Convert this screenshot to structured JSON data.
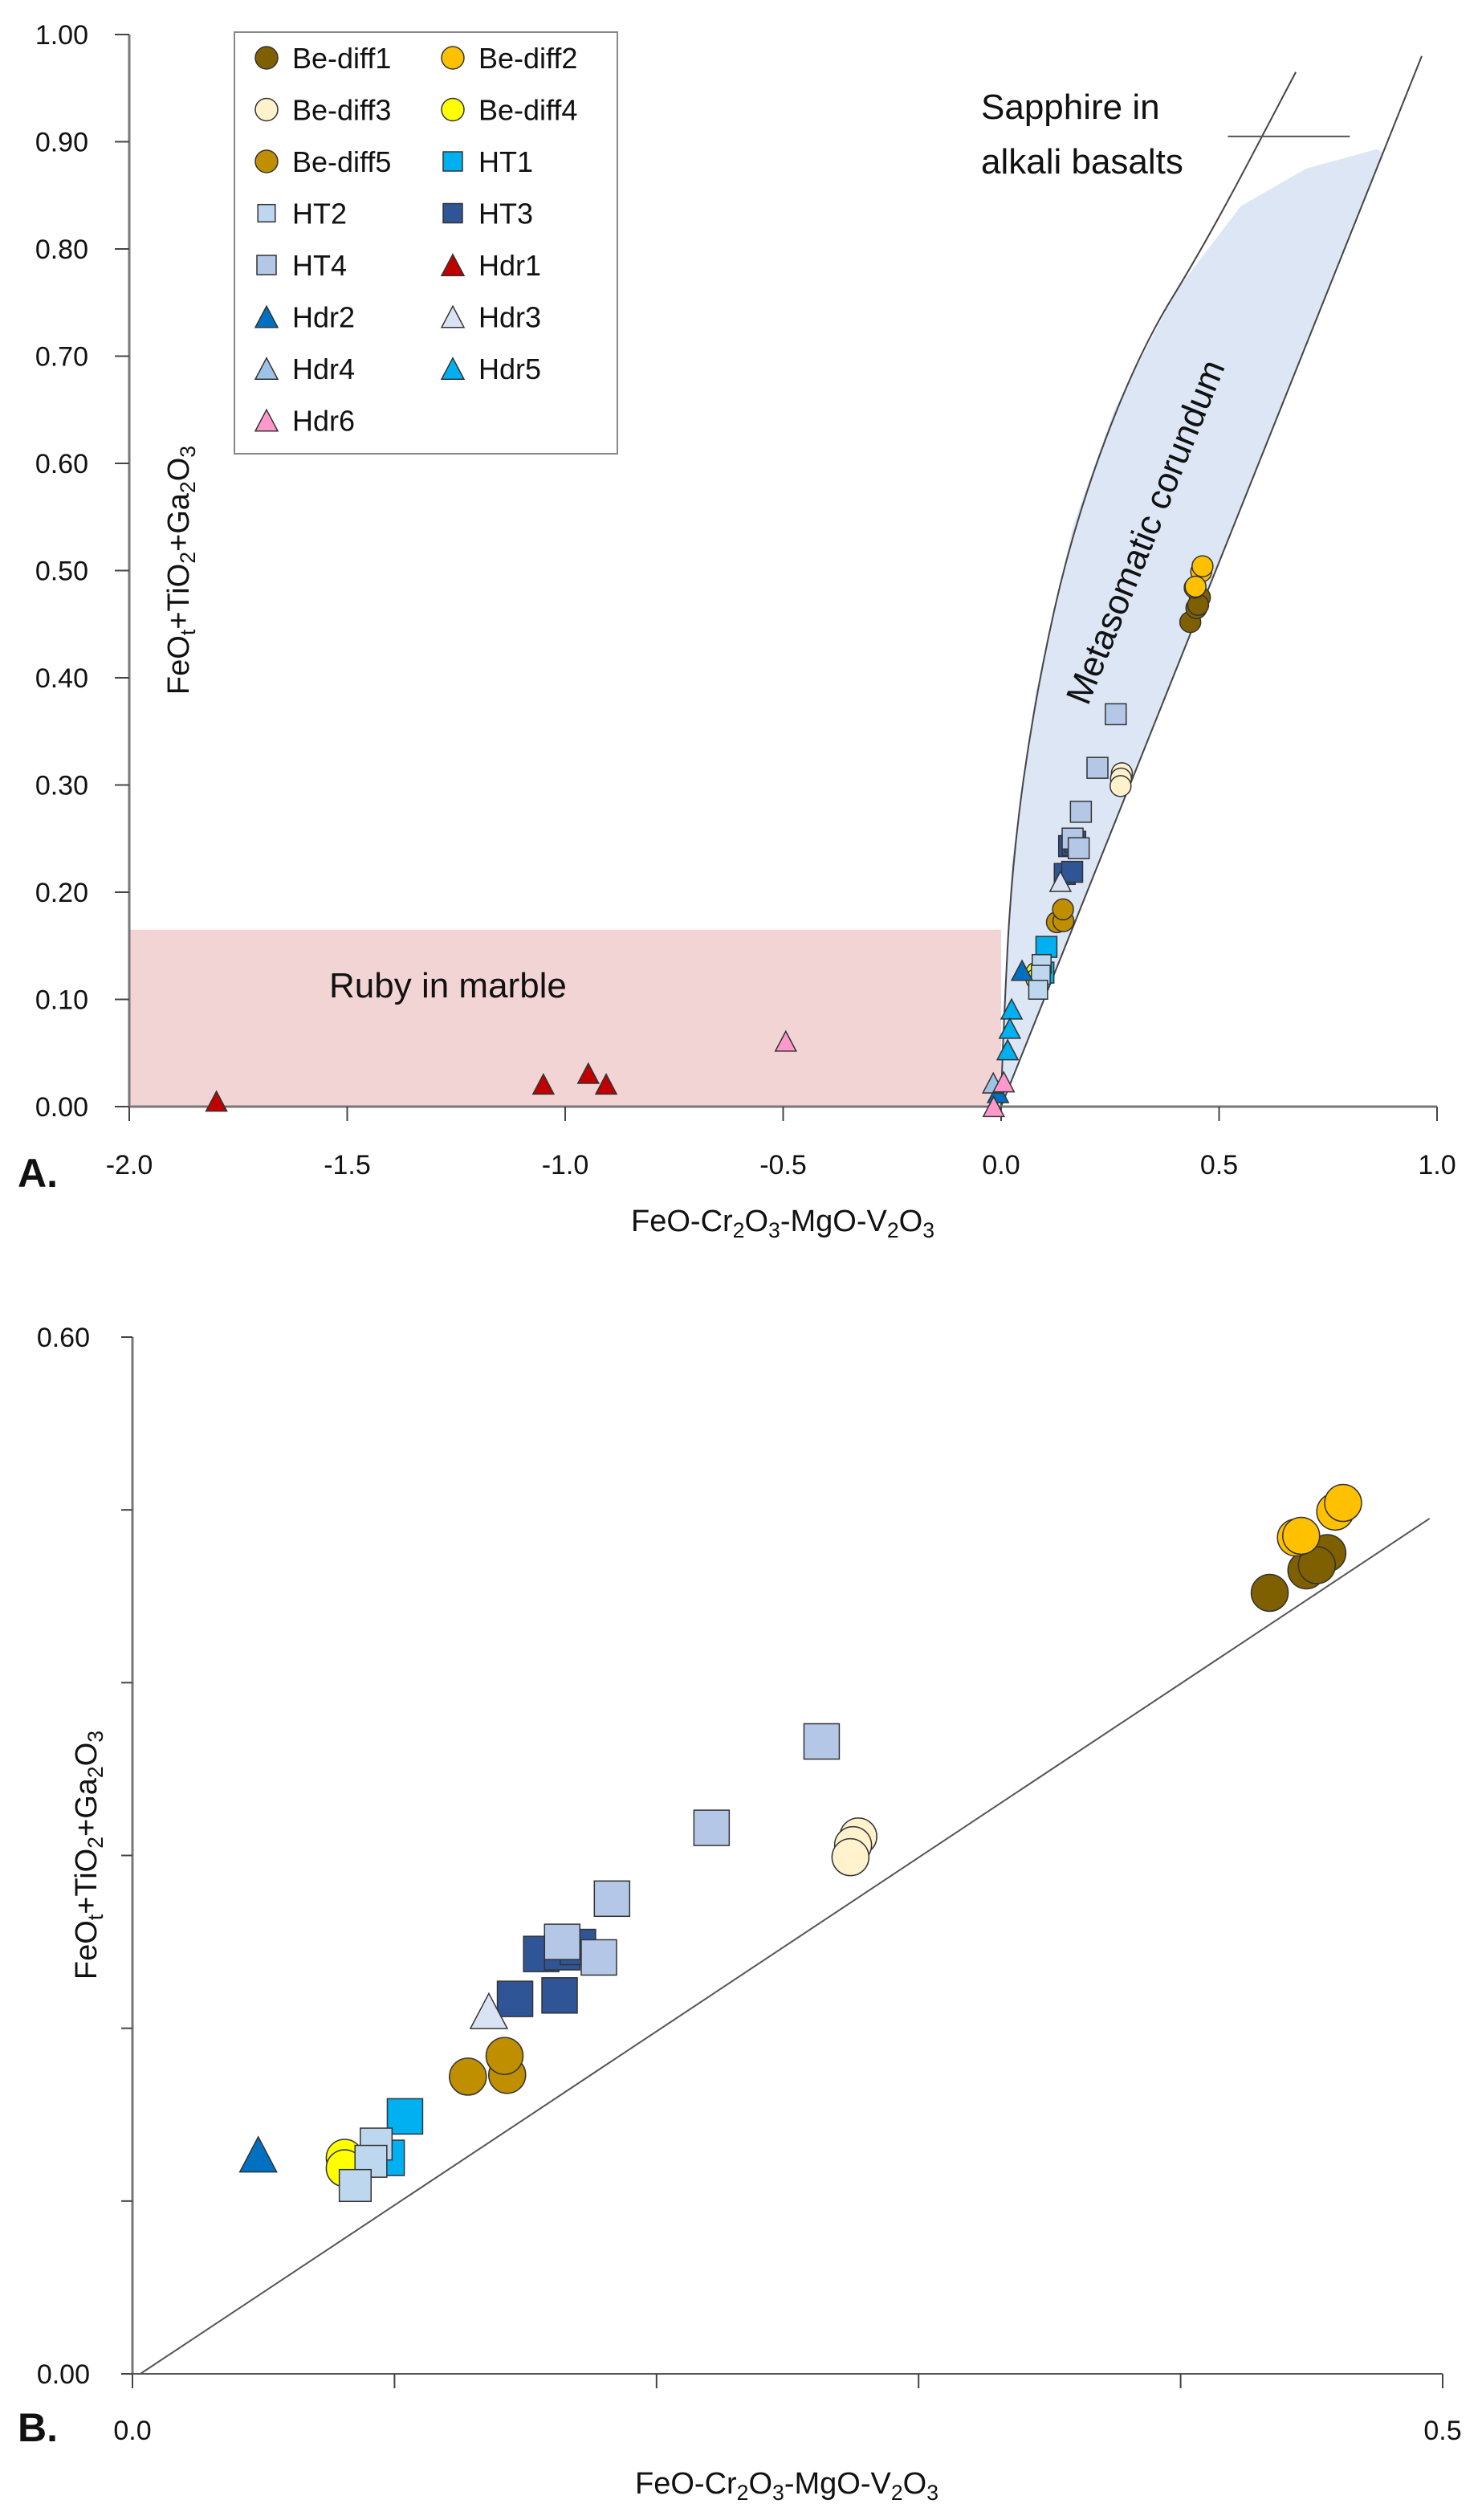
{
  "figure": {
    "panel_labels": [
      "A.",
      "B."
    ]
  },
  "chart_data": [
    {
      "id": "A",
      "type": "scatter",
      "title": "",
      "xlabel": "FeO-Cr2O3-MgO-V2O3",
      "ylabel": "FeOt+TiO2+Ga2O3",
      "xlim": [
        -2.0,
        1.0
      ],
      "ylim": [
        0.0,
        1.0
      ],
      "xticks": [
        -2.0,
        -1.5,
        -1.0,
        -0.5,
        0.0,
        0.5,
        1.0
      ],
      "xtick_labels": [
        "-2.0",
        "-1.5",
        "-1.0",
        "-0.5",
        "0.0",
        "0.5",
        "1.0"
      ],
      "yticks": [
        0.0,
        0.1,
        0.2,
        0.3,
        0.4,
        0.5,
        0.6,
        0.7,
        0.8,
        0.9,
        1.0
      ],
      "ytick_labels": [
        "0.00",
        "0.10",
        "0.20",
        "0.30",
        "0.40",
        "0.50",
        "0.60",
        "0.70",
        "0.80",
        "0.90",
        "1.00"
      ],
      "grid": false,
      "legend": {
        "placement": "top-left",
        "columns": 2
      },
      "regions": [
        {
          "name": "ruby-in-marble",
          "label": "Ruby in marble",
          "color": "#f2d4d5",
          "x": [
            -2.0,
            0.0
          ],
          "y": [
            0.0,
            0.165
          ]
        },
        {
          "name": "metasomatic-corundum",
          "label": "Metasomatic corundum",
          "color": "#dce6f4",
          "outline": [
            [
              0.0,
              0.0
            ],
            [
              0.005,
              0.08
            ],
            [
              0.024,
              0.226
            ],
            [
              0.079,
              0.385
            ],
            [
              0.166,
              0.543
            ],
            [
              0.26,
              0.65
            ],
            [
              0.4,
              0.76
            ],
            [
              0.55,
              0.84
            ],
            [
              0.7,
              0.875
            ],
            [
              0.862,
              0.893
            ],
            [
              0.0,
              0.0
            ]
          ]
        }
      ],
      "lines": [
        {
          "name": "sapphire-left-boundary",
          "points": [
            [
              0.0,
              0.0
            ],
            [
              0.003,
              0.05
            ],
            [
              0.024,
              0.226
            ],
            [
              0.079,
              0.385
            ],
            [
              0.166,
              0.543
            ],
            [
              0.313,
              0.702
            ],
            [
              0.472,
              0.807
            ],
            [
              0.676,
              0.965
            ]
          ]
        },
        {
          "name": "sapphire-right-boundary",
          "points": [
            [
              0.0,
              0.0
            ],
            [
              0.965,
              0.98
            ]
          ]
        },
        {
          "name": "sapphire-label-leader",
          "points": [
            [
              0.52,
              0.905
            ],
            [
              0.8,
              0.905
            ]
          ]
        }
      ],
      "annotations": [
        {
          "name": "sapphire-label",
          "lines": [
            "Sapphire in",
            "alkali basalts"
          ],
          "x": 0.0,
          "y": 0.0
        }
      ],
      "series": [
        {
          "name": "Be-diff1",
          "marker": "circle",
          "color": "#7f6000",
          "points": [
            [
              0.434,
              0.452
            ],
            [
              0.448,
              0.465
            ],
            [
              0.456,
              0.475
            ],
            [
              0.452,
              0.468
            ]
          ]
        },
        {
          "name": "Be-diff2",
          "marker": "circle",
          "color": "#ffc000",
          "points": [
            [
              0.444,
              0.484
            ],
            [
              0.459,
              0.499
            ],
            [
              0.462,
              0.504
            ],
            [
              0.446,
              0.485
            ]
          ]
        },
        {
          "name": "Be-diff3",
          "marker": "circle",
          "color": "#fff2cc",
          "points": [
            [
              0.277,
              0.311
            ],
            [
              0.275,
              0.306
            ],
            [
              0.274,
              0.299
            ]
          ]
        },
        {
          "name": "Be-diff4",
          "marker": "circle",
          "color": "#ffff00",
          "points": [
            [
              0.081,
              0.125
            ],
            [
              0.081,
              0.119
            ]
          ]
        },
        {
          "name": "Be-diff5",
          "marker": "circle",
          "color": "#bf8f00",
          "points": [
            [
              0.128,
              0.172
            ],
            [
              0.143,
              0.173
            ],
            [
              0.142,
              0.184
            ]
          ]
        },
        {
          "name": "HT1",
          "marker": "square",
          "color": "#00b0f0",
          "points": [
            [
              0.104,
              0.149
            ],
            [
              0.097,
              0.125
            ]
          ]
        },
        {
          "name": "HT2",
          "marker": "square-small",
          "color": "#bdd7ee",
          "points": [
            [
              0.093,
              0.133
            ],
            [
              0.091,
              0.123
            ],
            [
              0.085,
              0.109
            ]
          ]
        },
        {
          "name": "HT3",
          "marker": "square",
          "color": "#2f5597",
          "points": [
            [
              0.156,
              0.243
            ],
            [
              0.164,
              0.244
            ],
            [
              0.17,
              0.247
            ],
            [
              0.146,
              0.217
            ],
            [
              0.163,
              0.219
            ]
          ]
        },
        {
          "name": "HT4",
          "marker": "square",
          "color": "#b4c7e7",
          "points": [
            [
              0.263,
              0.366
            ],
            [
              0.221,
              0.316
            ],
            [
              0.183,
              0.275
            ],
            [
              0.164,
              0.25
            ],
            [
              0.178,
              0.241
            ]
          ]
        },
        {
          "name": "Hdr1",
          "marker": "triangle",
          "color": "#c00000",
          "points": [
            [
              -1.8,
              0.005
            ],
            [
              -1.05,
              0.021
            ],
            [
              -0.947,
              0.031
            ],
            [
              -0.906,
              0.021
            ]
          ]
        },
        {
          "name": "Hdr2",
          "marker": "triangle",
          "color": "#0070c0",
          "points": [
            [
              0.048,
              0.127
            ],
            [
              -0.007,
              0.013
            ]
          ]
        },
        {
          "name": "Hdr3",
          "marker": "triangle",
          "color": "#dae3f3",
          "points": [
            [
              0.136,
              0.21
            ]
          ]
        },
        {
          "name": "Hdr4",
          "marker": "triangle",
          "color": "#9dc3e6",
          "points": [
            [
              -0.018,
              0.022
            ]
          ]
        },
        {
          "name": "Hdr5",
          "marker": "triangle",
          "color": "#00b0f0",
          "points": [
            [
              0.024,
              0.091
            ],
            [
              0.02,
              0.073
            ],
            [
              0.015,
              0.053
            ]
          ]
        },
        {
          "name": "Hdr6",
          "marker": "triangle",
          "color": "#ff99cc",
          "points": [
            [
              -0.494,
              0.061
            ],
            [
              0.006,
              0.023
            ],
            [
              -0.017,
              0.0
            ]
          ]
        }
      ]
    },
    {
      "id": "B",
      "type": "scatter",
      "title": "",
      "xlabel": "FeO-Cr2O3-MgO-V2O3",
      "ylabel": "FeOt+TiO2+Ga2O3",
      "xlim": [
        0.0,
        0.5
      ],
      "ylim": [
        0.0,
        0.6
      ],
      "xticks": [
        0.0,
        0.1,
        0.2,
        0.3,
        0.4,
        0.5
      ],
      "xtick_labels": [
        "0.0",
        "",
        "",
        "",
        "",
        "0.5"
      ],
      "yticks": [
        0.0,
        0.1,
        0.2,
        0.3,
        0.4,
        0.5,
        0.6
      ],
      "ytick_labels": [
        "0.00",
        "",
        "",
        "",
        "",
        "",
        "0.60"
      ],
      "grid": false,
      "lines": [
        {
          "name": "one-to-one-line",
          "points": [
            [
              0.003,
              0.0
            ],
            [
              0.495,
              0.495
            ]
          ]
        }
      ],
      "series_ref": "same as chart A series within axis range"
    }
  ]
}
